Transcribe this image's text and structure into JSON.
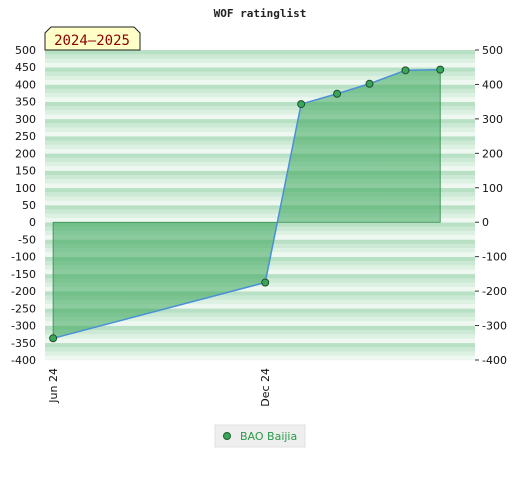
{
  "chart_data": {
    "type": "area",
    "title": "WOF ratinglist",
    "season_badge": "2024–2025",
    "xlabel": "",
    "ylabel": "",
    "ylim": [
      -400,
      500
    ],
    "y_ticks": [
      500,
      450,
      400,
      350,
      300,
      250,
      200,
      150,
      100,
      50,
      0,
      -50,
      -100,
      -150,
      -200,
      -250,
      -300,
      -350,
      -400
    ],
    "y2_ticks": [
      500,
      400,
      300,
      200,
      100,
      0,
      -100,
      -200,
      -300,
      -400
    ],
    "x_range": [
      "2024-05-25",
      "2025-05-31"
    ],
    "x_ticks": [
      {
        "date": "2024-06-01",
        "label": "Jun 24"
      },
      {
        "date": "2024-12-01",
        "label": "Dec 24"
      }
    ],
    "grid": "horizontal-bands",
    "legend_position": "bottom-center",
    "series": [
      {
        "name": "BAO Baijia",
        "color": "#4a90d9",
        "fill": "#3aa65a",
        "points": [
          {
            "x": "2024-06-01",
            "y": -337
          },
          {
            "x": "2024-12-01",
            "y": -175
          },
          {
            "x": "2025-01-01",
            "y": 343
          },
          {
            "x": "2025-02-01",
            "y": 373
          },
          {
            "x": "2025-03-01",
            "y": 402
          },
          {
            "x": "2025-04-01",
            "y": 441
          },
          {
            "x": "2025-05-01",
            "y": 443
          }
        ]
      }
    ]
  }
}
